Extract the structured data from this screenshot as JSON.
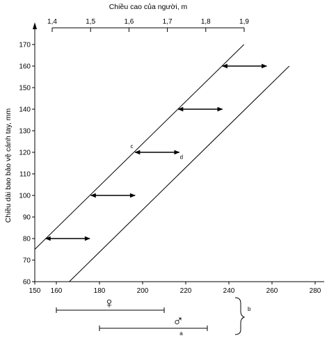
{
  "chart_data": {
    "type": "line",
    "top_axis": {
      "title": "Chiều cao của người, m",
      "ticks": [
        "1,4",
        "1,5",
        "1,6",
        "1,7",
        "1,8",
        "1,9"
      ],
      "range": [
        1.4,
        1.9
      ]
    },
    "x_axis": {
      "ticks": [
        "150",
        "160",
        "180",
        "200",
        "220",
        "240",
        "260",
        "280"
      ],
      "range": [
        150,
        282
      ]
    },
    "y_axis": {
      "title": "Chiều dài bao bảo vệ cánh tay, mm",
      "ticks": [
        "60",
        "70",
        "80",
        "90",
        "100",
        "110",
        "120",
        "130",
        "140",
        "150",
        "160",
        "170"
      ],
      "range": [
        60,
        175
      ]
    },
    "series": [
      {
        "x": [
          150,
          247
        ],
        "y": [
          75,
          170
        ]
      },
      {
        "x": [
          166,
          268
        ],
        "y": [
          60,
          160
        ]
      }
    ],
    "ranges": [
      {
        "y": 80,
        "x_start": 155,
        "x_end": 175.5
      },
      {
        "y": 100,
        "x_start": 176,
        "x_end": 196.5
      },
      {
        "y": 120,
        "x_start": 196.5,
        "x_end": 217
      },
      {
        "y": 140,
        "x_start": 216.5,
        "x_end": 237
      },
      {
        "y": 160,
        "x_start": 237,
        "x_end": 257.5
      }
    ],
    "point_labels": [
      {
        "text": "c",
        "x": 195,
        "y": 122
      },
      {
        "text": "d",
        "x": 218,
        "y": 117
      }
    ],
    "bottom_ranges": [
      {
        "symbol": "♀",
        "x_start": 160,
        "x_end": 210,
        "label": ""
      },
      {
        "symbol": "♂",
        "x_start": 180,
        "x_end": 230,
        "label": "a"
      }
    ],
    "brace_label": "b"
  }
}
